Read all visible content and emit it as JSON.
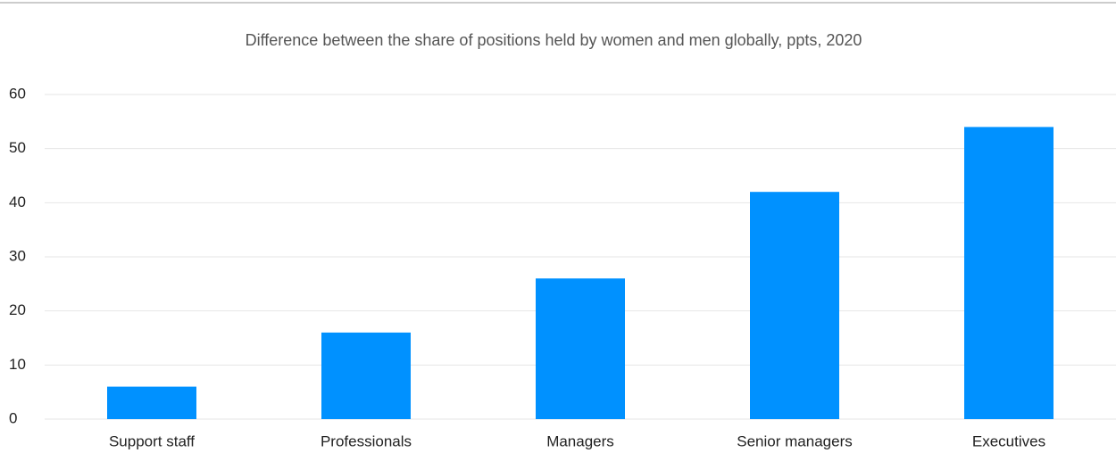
{
  "chart_data": {
    "type": "bar",
    "title": "Difference between the share of positions held by women and men globally, ppts, 2020",
    "categories": [
      "Support staff",
      "Professionals",
      "Managers",
      "Senior managers",
      "Executives"
    ],
    "values": [
      6,
      16,
      26,
      42,
      54
    ],
    "color": "#0091ff",
    "ylim": [
      0,
      60
    ],
    "yticks": [
      0,
      10,
      20,
      30,
      40,
      50,
      60
    ],
    "grid": true
  }
}
